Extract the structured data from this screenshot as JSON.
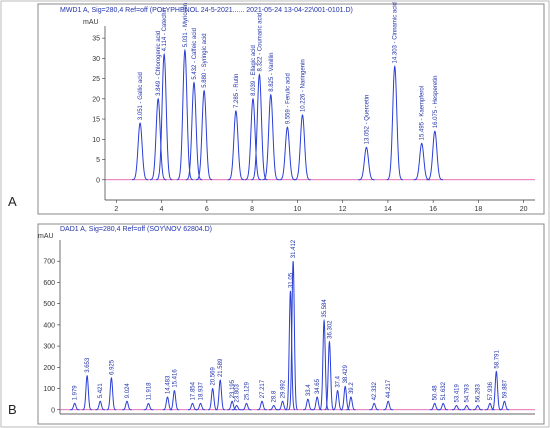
{
  "chart_data": [
    {
      "type": "chromatogram",
      "panel": "A",
      "title": "MWD1 A, Sig=280,4 Ref=off (POLYPHENOL 24-5-2021...... 2021-05-24 13-04-22\\001-0101.D)",
      "ylabel": "mAU",
      "color": "#2a3fd6",
      "baseline_color": "#e040a0",
      "xlim": [
        1.5,
        20.5
      ],
      "ylim": [
        -5,
        38
      ],
      "xticks": [
        2,
        4,
        6,
        8,
        10,
        12,
        14,
        16,
        18,
        20
      ],
      "yticks": [
        0,
        5,
        10,
        15,
        20,
        25,
        30,
        35
      ],
      "x": [
        3.051,
        3.849,
        4.114,
        5.031,
        5.432,
        5.88,
        7.285,
        8.039,
        8.322,
        8.825,
        9.559,
        10.226,
        13.052,
        14.303,
        15.495,
        16.075
      ],
      "values": [
        14,
        20,
        31,
        32,
        24,
        22,
        17,
        20,
        26,
        21,
        13,
        16,
        8,
        28,
        9,
        12
      ],
      "labels": [
        "3.051 - Gallic acid",
        "3.849 - Chlorogenic acid",
        "4.114 - Catechin",
        "5.031 - Myricetin",
        "5.432 - Caffeic acid",
        "5.880 - Syringic acid",
        "7.285 - Rutin",
        "8.039 - Ellagic acid",
        "8.322 - Coumaric acid",
        "8.825 - Vanillin",
        "9.559 - Ferulic acid",
        "10.226 - Naringenin",
        "13.052 - Quercetin",
        "14.303 - Cinnamic acid",
        "15.495 - Kaempferol",
        "16.075 - Hesperetin"
      ]
    },
    {
      "type": "chromatogram",
      "panel": "B",
      "title": "DAD1 A, Sig=280,4 Ref=off (SOY\\NOV 62804.D)",
      "ylabel": "mAU",
      "color": "#2a3fd6",
      "baseline_color": "#e040a0",
      "xlim": [
        0,
        64
      ],
      "ylim": [
        -20,
        800
      ],
      "yticks": [
        0,
        100,
        200,
        300,
        400,
        500,
        600,
        700
      ],
      "x": [
        1.979,
        3.653,
        5.421,
        6.925,
        9.024,
        11.918,
        14.483,
        15.416,
        17.854,
        18.937,
        20.569,
        21.589,
        23.195,
        23.803,
        25.129,
        27.217,
        28.8,
        29.992,
        31.05,
        31.412,
        33.4,
        34.65,
        35.584,
        36.302,
        37.4,
        38.429,
        39.2,
        42.332,
        44.217,
        50.48,
        51.632,
        53.419,
        54.793,
        56.283,
        57.936,
        58.791,
        59.887
      ],
      "values": [
        30,
        160,
        40,
        150,
        40,
        30,
        60,
        90,
        30,
        30,
        100,
        140,
        40,
        20,
        30,
        40,
        20,
        40,
        560,
        700,
        50,
        60,
        420,
        320,
        90,
        110,
        60,
        30,
        40,
        30,
        30,
        20,
        20,
        20,
        30,
        180,
        40
      ]
    }
  ]
}
